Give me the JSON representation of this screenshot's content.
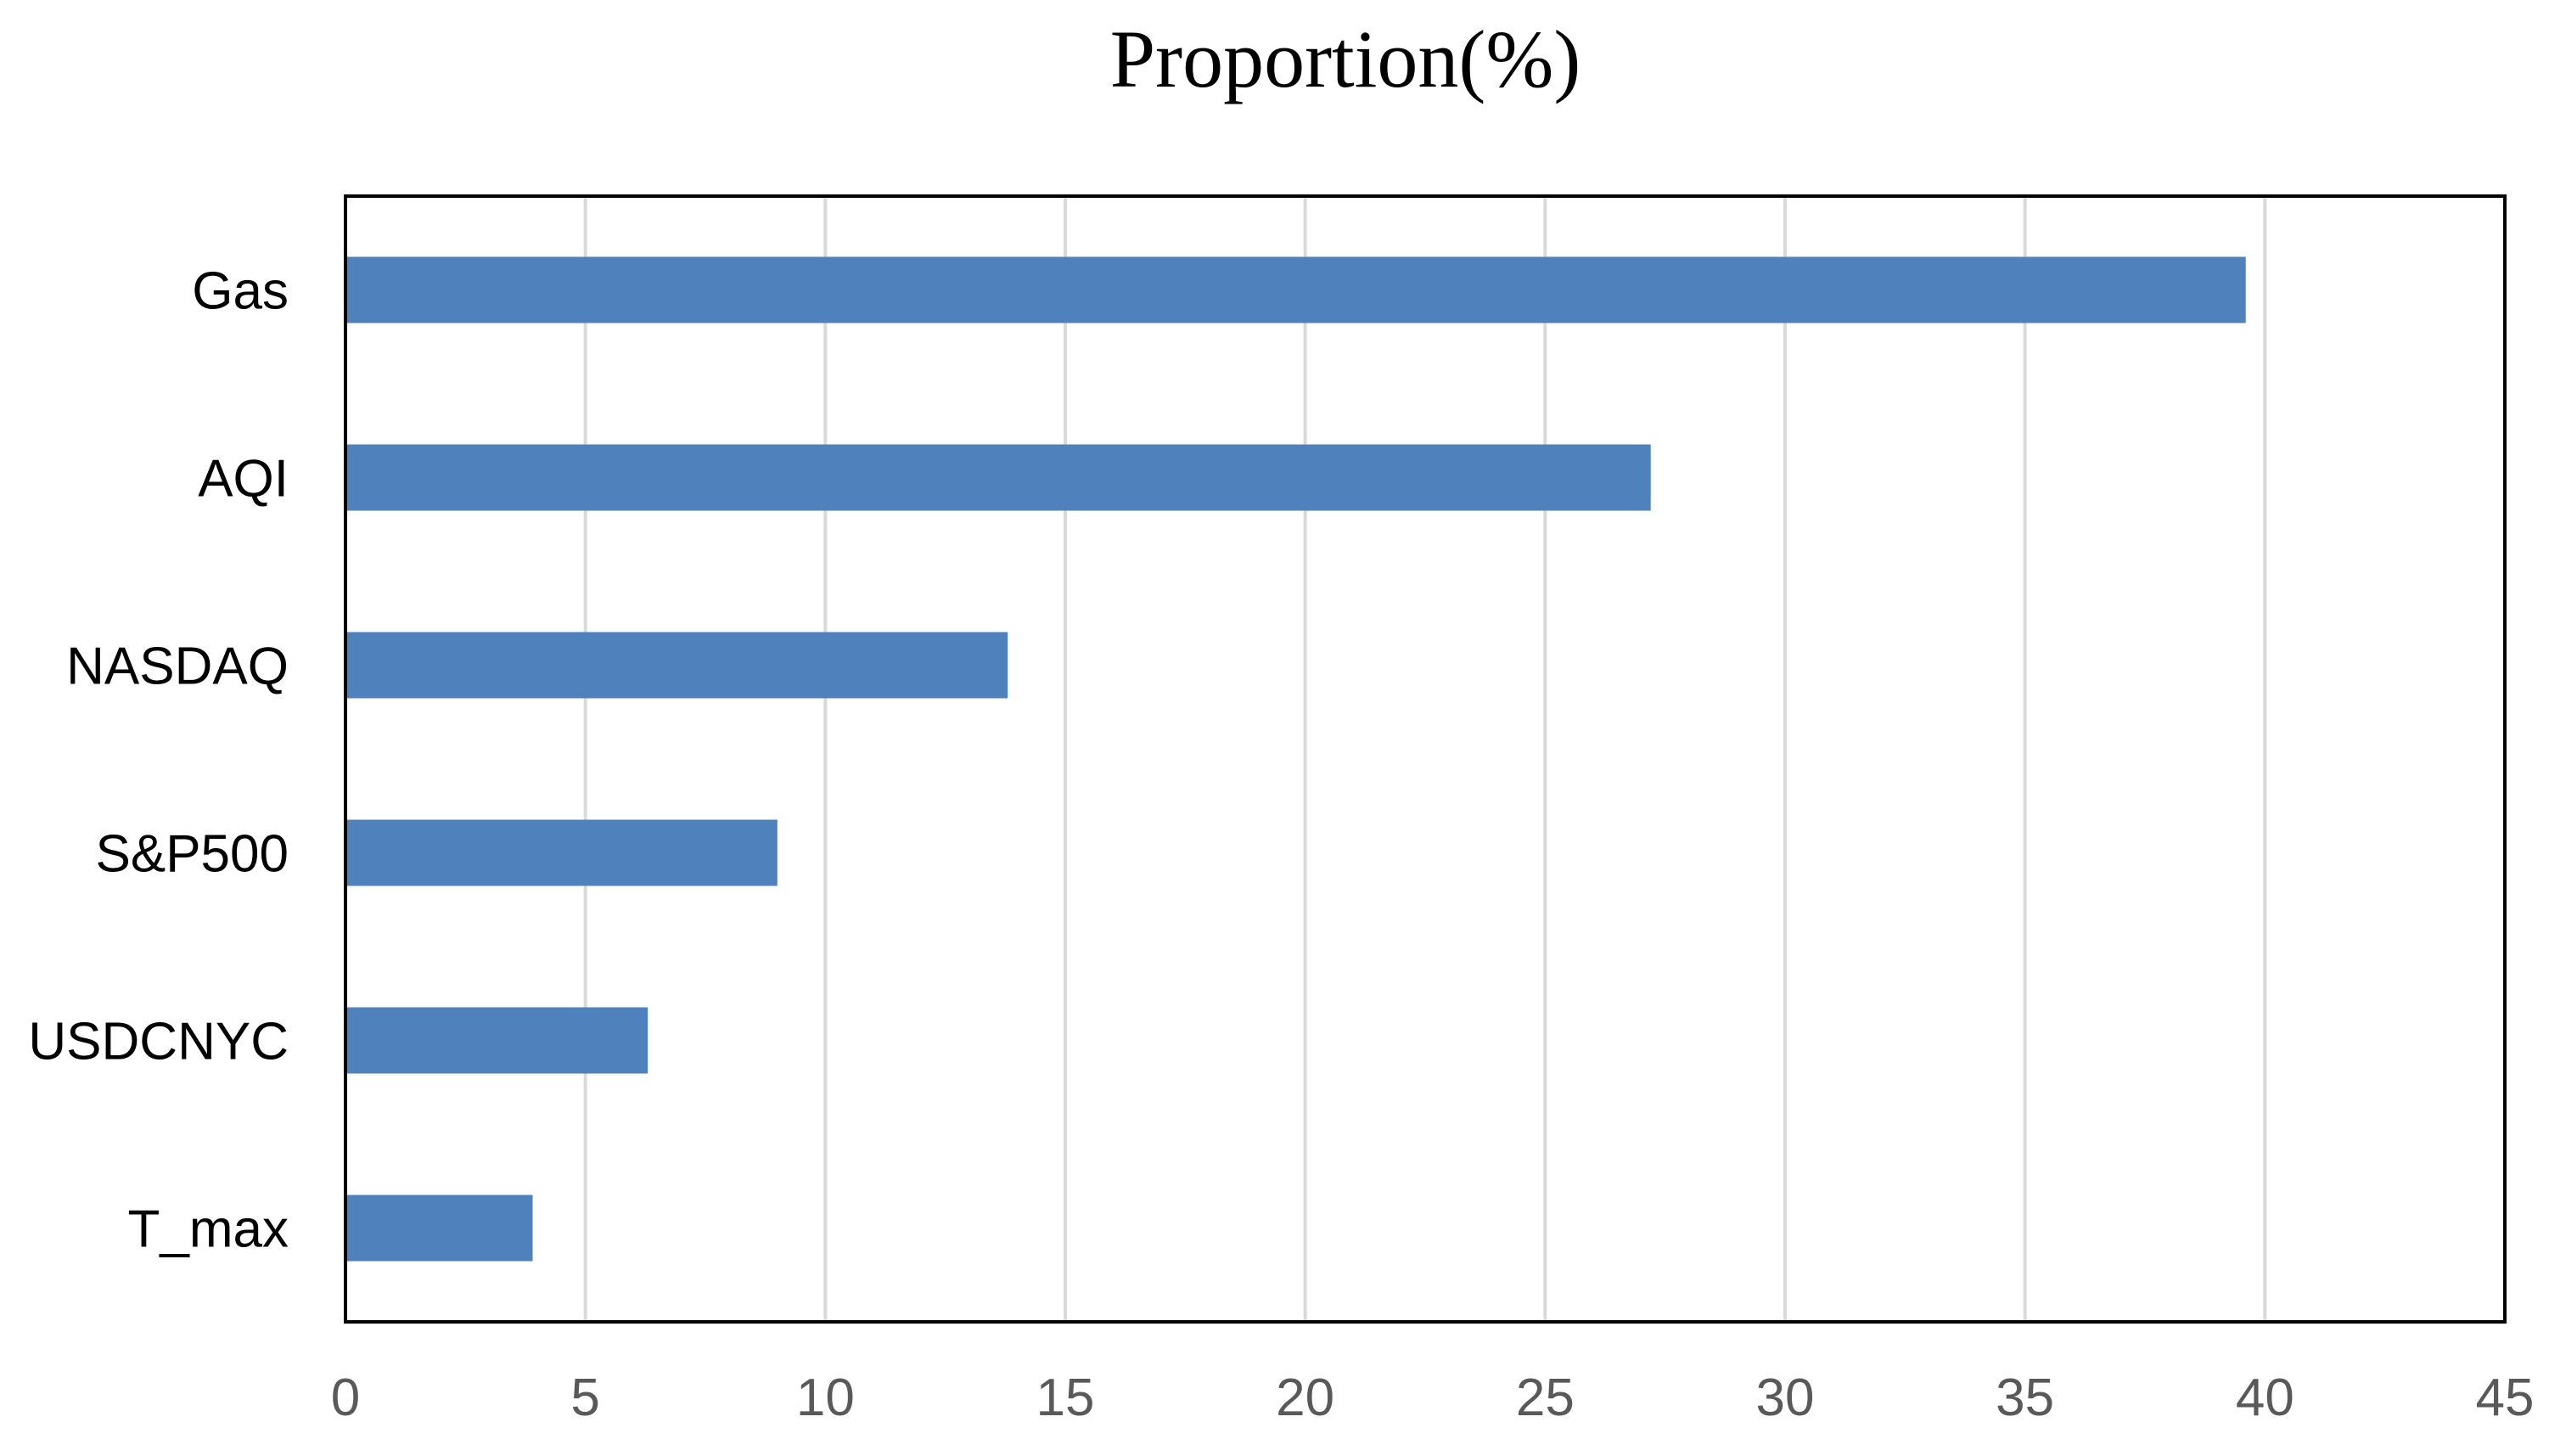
{
  "chart_data": {
    "type": "bar",
    "orientation": "horizontal",
    "title": "Proportion(%)",
    "categories": [
      "Gas",
      "AQI",
      "NASDAQ",
      "S&P500",
      "USDCNYC",
      "T_max"
    ],
    "values": [
      39.6,
      27.2,
      13.8,
      9.0,
      6.3,
      3.9
    ],
    "xlim": [
      0,
      45
    ],
    "x_ticks": [
      "0",
      "5",
      "10",
      "15",
      "20",
      "25",
      "30",
      "35",
      "40",
      "45"
    ],
    "grid": true,
    "legend": "none",
    "colors": {
      "bar": "#4F81BD",
      "grid": "#D9D9D9",
      "frame": "#000000"
    }
  }
}
